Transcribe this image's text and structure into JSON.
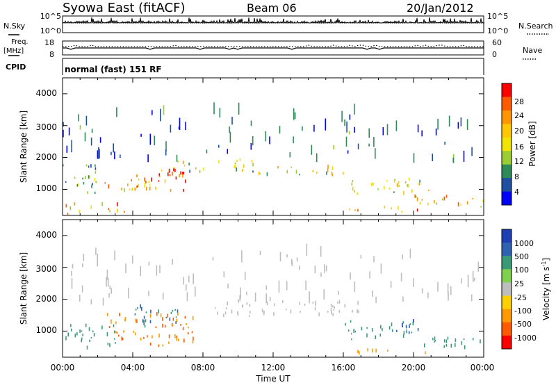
{
  "header": {
    "station": "Syowa East (fitACF)",
    "beam": "Beam 06",
    "date": "20/Jan/2012"
  },
  "strip": {
    "nsky_label": "N.Sky",
    "nsky_ticks": [
      "10^5",
      "10^0"
    ],
    "nsearch_label": "N.Search",
    "nsearch_ticks": [
      "10^5",
      "10^0"
    ],
    "freq_label": "Freq.",
    "freq_unit": "[MHz]",
    "freq_ticks": [
      "18",
      "8"
    ],
    "nave_label": "Nave",
    "nave_ticks": [
      "60",
      "0"
    ],
    "cpid_label": "CPID",
    "cpid_text": "normal (fast) 151 RF"
  },
  "axes": {
    "ylabel": "Slant Range [km]",
    "yticks": [
      "4000",
      "3000",
      "2000",
      "1000"
    ],
    "xticks": [
      "00:00",
      "04:00",
      "08:00",
      "12:00",
      "16:00",
      "20:00",
      "00:00"
    ],
    "xlabel": "Time UT"
  },
  "colorbars": {
    "power": {
      "label": "Power [dB]",
      "ticks": [
        "28",
        "24",
        "20",
        "16",
        "12",
        "8",
        "4"
      ],
      "colors": [
        "#ff0000",
        "#ff5a00",
        "#ff9600",
        "#ffc800",
        "#f2e400",
        "#9acd32",
        "#2e8b57",
        "#1e4fa0",
        "#0000ff"
      ]
    },
    "velocity": {
      "label": "Velocity [m s",
      "label_sup": "-1",
      "label_end": "]",
      "ticks": [
        "1000",
        "500",
        "100",
        "25",
        "-25",
        "-100",
        "-500",
        "-1000"
      ],
      "colors": [
        "#1f3fb4",
        "#2f62b3",
        "#3a9a78",
        "#7fd04c",
        "#bdbdbd",
        "#ffd000",
        "#ff9a00",
        "#ff5a00",
        "#ff0000"
      ]
    }
  },
  "chart_data": [
    {
      "type": "heatmap",
      "title": "Syowa East (fitACF) Beam 06 20/Jan/2012",
      "xlabel": "Time UT",
      "ylabel": "Slant Range [km]",
      "xlim": [
        0,
        24
      ],
      "ylim": [
        180,
        4500
      ],
      "quantity": "Power [dB]",
      "colorbar_range": [
        0,
        30
      ],
      "scatter_regions": [
        {
          "t": [
            0.0,
            2.0
          ],
          "r": [
            800,
            1800
          ],
          "value": 10
        },
        {
          "t": [
            0.0,
            3.5
          ],
          "r": [
            200,
            500
          ],
          "value": 22
        },
        {
          "t": [
            2.0,
            5.0
          ],
          "r": [
            900,
            1300
          ],
          "value": 18
        },
        {
          "t": [
            3.5,
            7.0
          ],
          "r": [
            900,
            1600
          ],
          "value": 26
        },
        {
          "t": [
            5.5,
            7.0
          ],
          "r": [
            1300,
            1900
          ],
          "value": 24
        },
        {
          "t": [
            7.0,
            11.0
          ],
          "r": [
            1500,
            1900
          ],
          "value": 12
        },
        {
          "t": [
            11.0,
            16.0
          ],
          "r": [
            1400,
            1700
          ],
          "value": 16
        },
        {
          "t": [
            16.0,
            21.0
          ],
          "r": [
            800,
            1300
          ],
          "value": 14
        },
        {
          "t": [
            20.0,
            24.0
          ],
          "r": [
            400,
            800
          ],
          "value": 18
        },
        {
          "t": [
            16.0,
            21.0
          ],
          "r": [
            250,
            400
          ],
          "value": 20
        },
        {
          "t": [
            0.0,
            24.0
          ],
          "r": [
            1800,
            3400
          ],
          "value": 6
        }
      ]
    },
    {
      "type": "heatmap",
      "xlabel": "Time UT",
      "ylabel": "Slant Range [km]",
      "xlim": [
        0,
        24
      ],
      "ylim": [
        180,
        4500
      ],
      "quantity": "Velocity [m s-1]",
      "colorbar_range": [
        -1000,
        1000
      ],
      "scatter_regions": [
        {
          "t": [
            0.0,
            3.0
          ],
          "r": [
            400,
            1200
          ],
          "value": 150
        },
        {
          "t": [
            2.5,
            7.5
          ],
          "r": [
            500,
            1500
          ],
          "value": -300
        },
        {
          "t": [
            4.0,
            7.0
          ],
          "r": [
            1100,
            1800
          ],
          "value": 300
        },
        {
          "t": [
            8.0,
            17.0
          ],
          "r": [
            1400,
            1900
          ],
          "value": 0
        },
        {
          "t": [
            16.0,
            20.0
          ],
          "r": [
            700,
            1300
          ],
          "value": 200
        },
        {
          "t": [
            19.0,
            20.5
          ],
          "r": [
            900,
            1300
          ],
          "value": 700
        },
        {
          "t": [
            20.0,
            24.0
          ],
          "r": [
            400,
            800
          ],
          "value": 120
        },
        {
          "t": [
            16.0,
            21.0
          ],
          "r": [
            250,
            400
          ],
          "value": -100
        },
        {
          "t": [
            0.0,
            24.0
          ],
          "r": [
            1800,
            3400
          ],
          "value": 0
        }
      ]
    }
  ]
}
